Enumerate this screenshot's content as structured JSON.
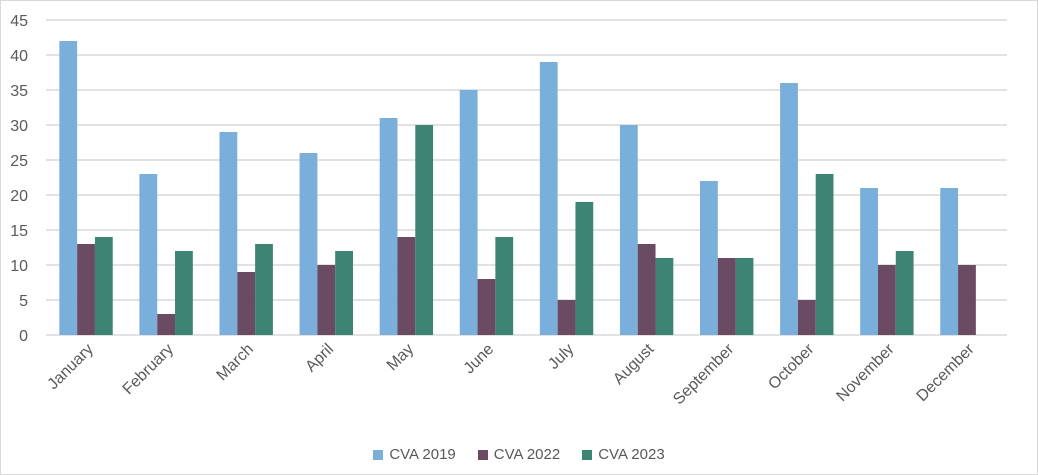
{
  "chart_data": {
    "type": "bar",
    "categories": [
      "January",
      "February",
      "March",
      "April",
      "May",
      "June",
      "July",
      "August",
      "September",
      "October",
      "November",
      "December"
    ],
    "series": [
      {
        "name": "CVA 2019",
        "color": "#7aaedb",
        "values": [
          42,
          23,
          29,
          26,
          31,
          35,
          39,
          30,
          22,
          36,
          21,
          21
        ]
      },
      {
        "name": "CVA 2022",
        "color": "#6b4a63",
        "values": [
          13,
          3,
          9,
          10,
          14,
          8,
          5,
          13,
          11,
          5,
          10,
          10
        ]
      },
      {
        "name": "CVA 2023",
        "color": "#3d8474",
        "values": [
          14,
          12,
          13,
          12,
          30,
          14,
          19,
          11,
          11,
          23,
          12,
          null
        ]
      }
    ],
    "ylim": [
      0,
      45
    ],
    "yticks": [
      0,
      5,
      10,
      15,
      20,
      25,
      30,
      35,
      40,
      45
    ],
    "grid": true,
    "legend_position": "bottom"
  }
}
